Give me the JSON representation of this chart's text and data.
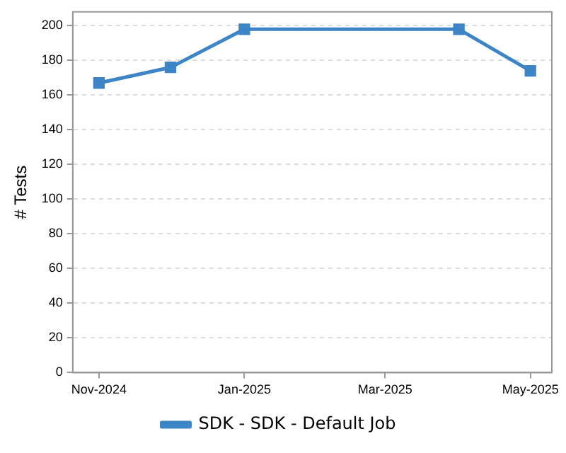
{
  "chart_data": {
    "type": "line",
    "ylabel": "# Tests",
    "x": [
      "2024-11",
      "2024-12",
      "2025-01",
      "2025-04",
      "2025-05"
    ],
    "series": [
      {
        "name": "SDK - SDK - Default Job",
        "color": "#3d85c6",
        "values": [
          167,
          176,
          198,
          198,
          174
        ]
      }
    ],
    "xlim": [
      "2024-10-21",
      "2025-05-10"
    ],
    "xticks": [
      {
        "value": "2024-11",
        "label": "Nov-2024"
      },
      {
        "value": "2025-01",
        "label": "Jan-2025"
      },
      {
        "value": "2025-03",
        "label": "Mar-2025"
      },
      {
        "value": "2025-05",
        "label": "May-2025"
      }
    ],
    "ylim": [
      0,
      208
    ],
    "yticks": [
      0,
      20,
      40,
      60,
      80,
      100,
      120,
      140,
      160,
      180,
      200
    ],
    "grid": "y",
    "legend": "bottom",
    "marker": "square",
    "line_style": "solid"
  }
}
